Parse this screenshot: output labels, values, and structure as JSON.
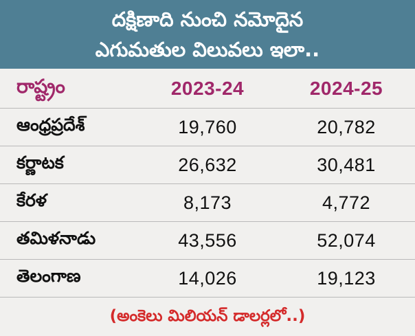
{
  "header": {
    "title_line1": "దక్షిణాది నుంచి నమోదైన",
    "title_line2": "ఎగుమతుల విలువలు ఇలా.."
  },
  "chart_data": {
    "type": "table",
    "columns": [
      "రాష్ట్రం",
      "2023-24",
      "2024-25"
    ],
    "rows": [
      {
        "state": "ఆంధ్రప్రదేశ్",
        "values": [
          "19,760",
          "20,782"
        ]
      },
      {
        "state": "కర్ణాటక",
        "values": [
          "26,632",
          "30,481"
        ]
      },
      {
        "state": "కేరళ",
        "values": [
          "8,173",
          "4,772"
        ]
      },
      {
        "state": "తమిళనాడు",
        "values": [
          "43,556",
          "52,074"
        ]
      },
      {
        "state": "తెలంగాణ",
        "values": [
          "14,026",
          "19,123"
        ]
      }
    ],
    "footnote": "(అంకెలు మిలియన్ డాలర్లలో..)"
  },
  "colors": {
    "header_bg": "#4f7f94",
    "header_text": "#ffffff",
    "column_header_text": "#a0286a",
    "footnote_text": "#d42a2a",
    "background": "#f1f0ee"
  }
}
